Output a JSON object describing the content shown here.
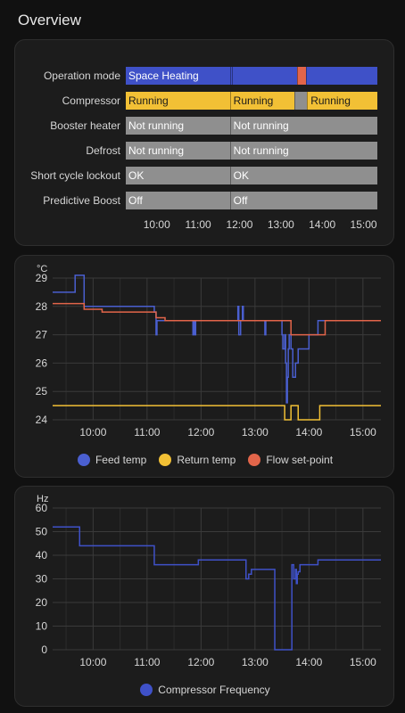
{
  "section": {
    "title": "Overview"
  },
  "timeline": {
    "rows": [
      {
        "label": "Operation mode",
        "segments": [
          {
            "start": "09:15",
            "end": "11:46",
            "text": "Space Heating",
            "color": "#3f51c8"
          },
          {
            "start": "11:46",
            "end": "11:49",
            "text": "",
            "color": "#3f51c8"
          },
          {
            "start": "11:49",
            "end": "13:24",
            "text": "",
            "color": "#3f51c8"
          },
          {
            "start": "13:24",
            "end": "13:36",
            "text": "",
            "color": "#e2654a"
          },
          {
            "start": "13:36",
            "end": "15:20",
            "text": "",
            "color": "#3f51c8"
          }
        ]
      },
      {
        "label": "Compressor",
        "segments": [
          {
            "start": "09:15",
            "end": "11:46",
            "text": "Running",
            "color": "#f2c035"
          },
          {
            "start": "11:46",
            "end": "13:19",
            "text": "Running",
            "color": "#f2c035"
          },
          {
            "start": "13:19",
            "end": "13:38",
            "text": "",
            "color": "#8f8f8f"
          },
          {
            "start": "13:38",
            "end": "15:20",
            "text": "Running",
            "color": "#f2c035"
          }
        ]
      },
      {
        "label": "Booster heater",
        "segments": [
          {
            "start": "09:15",
            "end": "11:46",
            "text": "Not running",
            "color": "#8f8f8f"
          },
          {
            "start": "11:46",
            "end": "15:20",
            "text": "Not running",
            "color": "#8f8f8f"
          }
        ]
      },
      {
        "label": "Defrost",
        "segments": [
          {
            "start": "09:15",
            "end": "11:46",
            "text": "Not running",
            "color": "#8f8f8f"
          },
          {
            "start": "11:46",
            "end": "15:20",
            "text": "Not running",
            "color": "#8f8f8f"
          }
        ]
      },
      {
        "label": "Short cycle lockout",
        "segments": [
          {
            "start": "09:15",
            "end": "11:46",
            "text": "OK",
            "color": "#8f8f8f"
          },
          {
            "start": "11:46",
            "end": "15:20",
            "text": "OK",
            "color": "#8f8f8f"
          }
        ]
      },
      {
        "label": "Predictive Boost",
        "segments": [
          {
            "start": "09:15",
            "end": "11:46",
            "text": "Off",
            "color": "#8f8f8f"
          },
          {
            "start": "11:46",
            "end": "15:20",
            "text": "Off",
            "color": "#8f8f8f"
          }
        ]
      }
    ],
    "ticks": [
      "10:00",
      "11:00",
      "12:00",
      "13:00",
      "14:00",
      "15:00"
    ]
  },
  "chart_data": [
    {
      "type": "line",
      "ylabel": "°C",
      "ylim": [
        24,
        29
      ],
      "yticks": [
        24,
        25,
        26,
        27,
        28,
        29
      ],
      "xlim": [
        "09:15",
        "15:20"
      ],
      "xticks": [
        "10:00",
        "11:00",
        "12:00",
        "13:00",
        "14:00",
        "15:00"
      ],
      "grid": true,
      "legend": "bottom",
      "series": [
        {
          "name": "Feed temp",
          "color": "#4a5fd0",
          "step": true,
          "x": [
            "09:15",
            "09:40",
            "09:40",
            "09:50",
            "10:00",
            "11:00",
            "11:08",
            "11:10",
            "11:11",
            "11:12",
            "11:20",
            "11:50",
            "11:51",
            "11:52",
            "11:53",
            "11:54",
            "12:00",
            "12:30",
            "12:40",
            "12:41",
            "12:42",
            "12:44",
            "12:46",
            "12:47",
            "12:50",
            "13:10",
            "13:11",
            "13:12",
            "13:15",
            "13:30",
            "13:31",
            "13:33",
            "13:34",
            "13:35",
            "13:36",
            "13:37",
            "13:38",
            "13:40",
            "13:42",
            "13:45",
            "13:48",
            "13:52",
            "14:00",
            "14:05",
            "14:10",
            "14:15",
            "15:20"
          ],
          "y": [
            28.5,
            28.5,
            29.1,
            28.0,
            28.0,
            28.0,
            27.8,
            27.0,
            27.5,
            27.5,
            27.5,
            27.5,
            27.0,
            27.5,
            27.0,
            27.5,
            27.5,
            27.5,
            27.5,
            28.0,
            27.0,
            27.5,
            28.0,
            27.5,
            27.5,
            27.5,
            27.0,
            27.5,
            27.5,
            27.0,
            26.5,
            27.0,
            26.0,
            24.6,
            25.5,
            26.5,
            27.0,
            26.5,
            25.5,
            26.0,
            26.5,
            26.5,
            27.0,
            27.0,
            27.5,
            27.5,
            27.5
          ]
        },
        {
          "name": "Return temp",
          "color": "#f2c035",
          "step": true,
          "x": [
            "09:15",
            "13:30",
            "13:33",
            "13:40",
            "13:48",
            "14:08",
            "14:12",
            "14:15",
            "15:20"
          ],
          "y": [
            24.5,
            24.5,
            24.0,
            24.5,
            24.0,
            24.0,
            24.5,
            24.5,
            24.5
          ]
        },
        {
          "name": "Flow set-point",
          "color": "#e2654a",
          "step": true,
          "x": [
            "09:15",
            "09:45",
            "09:50",
            "10:10",
            "11:10",
            "11:20",
            "13:33",
            "13:40",
            "14:00",
            "14:18",
            "15:20"
          ],
          "y": [
            28.1,
            28.1,
            27.9,
            27.8,
            27.6,
            27.5,
            27.5,
            27.0,
            27.0,
            27.5,
            27.5
          ]
        }
      ]
    },
    {
      "type": "line",
      "ylabel": "Hz",
      "ylim": [
        0,
        60
      ],
      "yticks": [
        0,
        10,
        20,
        30,
        40,
        50,
        60
      ],
      "xlim": [
        "09:15",
        "15:20"
      ],
      "xticks": [
        "10:00",
        "11:00",
        "12:00",
        "13:00",
        "14:00",
        "15:00"
      ],
      "grid": true,
      "legend": "bottom",
      "series": [
        {
          "name": "Compressor Frequency",
          "color": "#3f51c8",
          "step": true,
          "x": [
            "09:15",
            "09:45",
            "11:08",
            "11:57",
            "12:50",
            "12:53",
            "12:56",
            "13:20",
            "13:22",
            "13:40",
            "13:41",
            "13:43",
            "13:45",
            "13:46",
            "13:47",
            "13:48",
            "13:50",
            "13:55",
            "14:10",
            "15:20"
          ],
          "y": [
            52,
            44,
            36,
            38,
            30,
            32,
            34,
            34,
            0,
            0,
            36,
            30,
            34,
            28,
            32,
            33,
            36,
            36,
            38,
            38
          ]
        }
      ]
    }
  ]
}
